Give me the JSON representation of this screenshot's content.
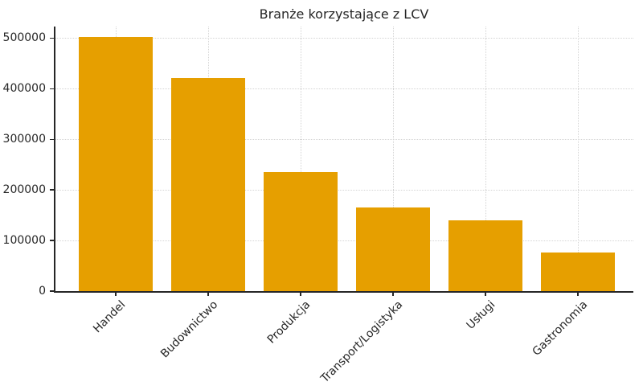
{
  "title": "Branże korzystające z LCV",
  "chart_data": {
    "type": "bar",
    "title": "Branże korzystające z LCV",
    "categories": [
      "Handel",
      "Budownictwo",
      "Produkcja",
      "Transport/Logistyka",
      "Usługi",
      "Gastronomia"
    ],
    "values": [
      502000,
      422000,
      235000,
      165000,
      140000,
      77000
    ],
    "xlabel": "",
    "ylabel": "",
    "ylim": [
      0,
      523000
    ],
    "yticks": [
      0,
      100000,
      200000,
      300000,
      400000,
      500000
    ],
    "ytick_labels": [
      "0",
      "100000",
      "200000",
      "300000",
      "400000",
      "500000"
    ],
    "xtick_rotation_deg": 45,
    "grid": "both, dotted, light-gray",
    "legend": "none",
    "bar_color": "#E69F00",
    "axis_color": "#262626",
    "grid_color": "#d4d4d4",
    "background_color": "#ffffff"
  }
}
